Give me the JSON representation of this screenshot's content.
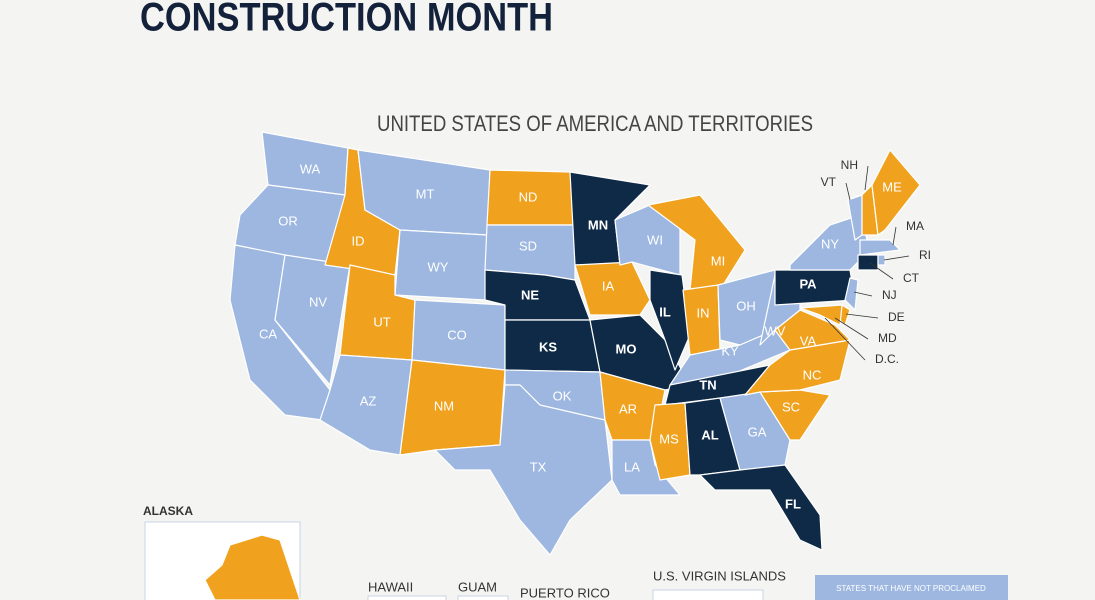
{
  "header": {
    "title": "CONSTRUCTION MONTH"
  },
  "map": {
    "title": "UNITED STATES OF AMERICA AND TERRITORIES",
    "states": [
      {
        "label": "WA",
        "color": "#9db7e0"
      },
      {
        "label": "OR",
        "color": "#9db7e0"
      },
      {
        "label": "CA",
        "color": "#9db7e0"
      },
      {
        "label": "NV",
        "color": "#9db7e0"
      },
      {
        "label": "ID",
        "color": "#f0a21e"
      },
      {
        "label": "MT",
        "color": "#9db7e0"
      },
      {
        "label": "WY",
        "color": "#9db7e0"
      },
      {
        "label": "UT",
        "color": "#f0a21e"
      },
      {
        "label": "AZ",
        "color": "#9db7e0"
      },
      {
        "label": "CO",
        "color": "#9db7e0"
      },
      {
        "label": "NM",
        "color": "#f0a21e"
      },
      {
        "label": "ND",
        "color": "#f0a21e"
      },
      {
        "label": "SD",
        "color": "#9db7e0"
      },
      {
        "label": "NE",
        "color": "#0f2a47"
      },
      {
        "label": "KS",
        "color": "#0f2a47"
      },
      {
        "label": "OK",
        "color": "#9db7e0"
      },
      {
        "label": "TX",
        "color": "#9db7e0"
      },
      {
        "label": "MN",
        "color": "#0f2a47"
      },
      {
        "label": "IA",
        "color": "#f0a21e"
      },
      {
        "label": "MO",
        "color": "#0f2a47"
      },
      {
        "label": "AR",
        "color": "#f0a21e"
      },
      {
        "label": "LA",
        "color": "#9db7e0"
      },
      {
        "label": "WI",
        "color": "#9db7e0"
      },
      {
        "label": "IL",
        "color": "#0f2a47"
      },
      {
        "label": "MI",
        "color": "#f0a21e"
      },
      {
        "label": "IN",
        "color": "#f0a21e"
      },
      {
        "label": "OH",
        "color": "#9db7e0"
      },
      {
        "label": "KY",
        "color": "#9db7e0"
      },
      {
        "label": "TN",
        "color": "#0f2a47"
      },
      {
        "label": "MS",
        "color": "#f0a21e"
      },
      {
        "label": "AL",
        "color": "#0f2a47"
      },
      {
        "label": "GA",
        "color": "#9db7e0"
      },
      {
        "label": "FL",
        "color": "#0f2a47"
      },
      {
        "label": "SC",
        "color": "#f0a21e"
      },
      {
        "label": "NC",
        "color": "#f0a21e"
      },
      {
        "label": "VA",
        "color": "#f0a21e"
      },
      {
        "label": "WV",
        "color": "#9db7e0"
      },
      {
        "label": "PA",
        "color": "#0f2a47"
      },
      {
        "label": "NY",
        "color": "#9db7e0"
      },
      {
        "label": "VT",
        "color": "#9db7e0"
      },
      {
        "label": "NH",
        "color": "#f0a21e"
      },
      {
        "label": "ME",
        "color": "#f0a21e"
      },
      {
        "label": "MA",
        "color": "#9db7e0"
      },
      {
        "label": "CT",
        "color": "#0f2a47"
      },
      {
        "label": "RI",
        "color": "#9db7e0"
      },
      {
        "label": "NJ",
        "color": "#9db7e0"
      },
      {
        "label": "DE",
        "color": "#f0a21e"
      },
      {
        "label": "MD",
        "color": "#f0a21e"
      },
      {
        "label": "D.C.",
        "color": "#f0a21e"
      }
    ],
    "alaska": {
      "label": "ALASKA",
      "color": "#f0a21e"
    },
    "territories": [
      {
        "label": "HAWAII"
      },
      {
        "label": "GUAM"
      },
      {
        "label": "PUERTO RICO"
      },
      {
        "label": "U.S. VIRGIN ISLANDS"
      }
    ],
    "legend": [
      {
        "label": "STATES THAT HAVE NOT PROCLAIMED",
        "color": "#9db7e0"
      }
    ]
  }
}
